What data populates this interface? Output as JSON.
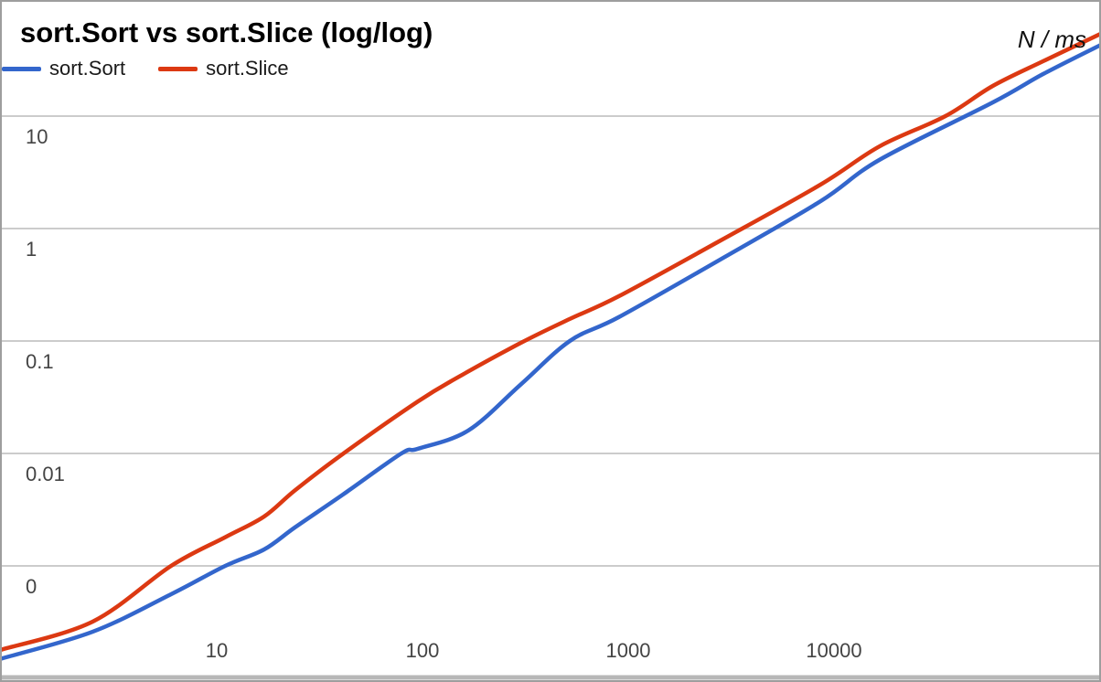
{
  "chart_data": {
    "type": "line",
    "title": "sort.Sort vs sort.Slice (log/log)",
    "axis_unit_label": "N / ms",
    "x_scale": "log",
    "y_scale": "log",
    "grid": "horizontal-only",
    "legend_position": "top-left",
    "x_range": [
      0.9,
      200000
    ],
    "y_range": [
      0.0001,
      100
    ],
    "x_ticks": [
      {
        "value": 10,
        "label": "10"
      },
      {
        "value": 100,
        "label": "100"
      },
      {
        "value": 1000,
        "label": "1000"
      },
      {
        "value": 10000,
        "label": "10000"
      }
    ],
    "y_ticks": [
      {
        "value": 10,
        "label": "10"
      },
      {
        "value": 1,
        "label": "1"
      },
      {
        "value": 0.1,
        "label": "0.1"
      },
      {
        "value": 0.01,
        "label": "0.01"
      },
      {
        "value": 0.001,
        "label": "0"
      }
    ],
    "colors": {
      "gridline": "#cccccc",
      "baseline": "#b7b7b7",
      "tick_label": "#444444",
      "frame_border": "#9e9e9e"
    },
    "series": [
      {
        "name": "sort.Sort",
        "color": "#3366cc",
        "points": [
          [
            0.9,
            0.00015
          ],
          [
            2.5,
            0.00026
          ],
          [
            6,
            0.00056
          ],
          [
            11,
            0.001
          ],
          [
            17,
            0.0014
          ],
          [
            24,
            0.0022
          ],
          [
            41,
            0.0043
          ],
          [
            79,
            0.01
          ],
          [
            95,
            0.011
          ],
          [
            167,
            0.016
          ],
          [
            300,
            0.041
          ],
          [
            520,
            0.1
          ],
          [
            900,
            0.163
          ],
          [
            2800,
            0.53
          ],
          [
            8600,
            1.75
          ],
          [
            16700,
            4.1
          ],
          [
            59000,
            13.2
          ],
          [
            104000,
            23.7
          ],
          [
            198000,
            43
          ]
        ]
      },
      {
        "name": "sort.Slice",
        "color": "#dc3912",
        "points": [
          [
            0.9,
            0.00018
          ],
          [
            2.5,
            0.00032
          ],
          [
            6,
            0.001
          ],
          [
            11,
            0.0018
          ],
          [
            17,
            0.00275
          ],
          [
            24,
            0.0047
          ],
          [
            41,
            0.0099
          ],
          [
            95,
            0.029
          ],
          [
            150,
            0.048
          ],
          [
            300,
            0.096
          ],
          [
            520,
            0.157
          ],
          [
            900,
            0.25
          ],
          [
            2800,
            0.78
          ],
          [
            8600,
            2.46
          ],
          [
            16700,
            5.4
          ],
          [
            34800,
            10
          ],
          [
            59000,
            18.5
          ],
          [
            104000,
            30.8
          ],
          [
            198000,
            54
          ]
        ]
      }
    ]
  }
}
